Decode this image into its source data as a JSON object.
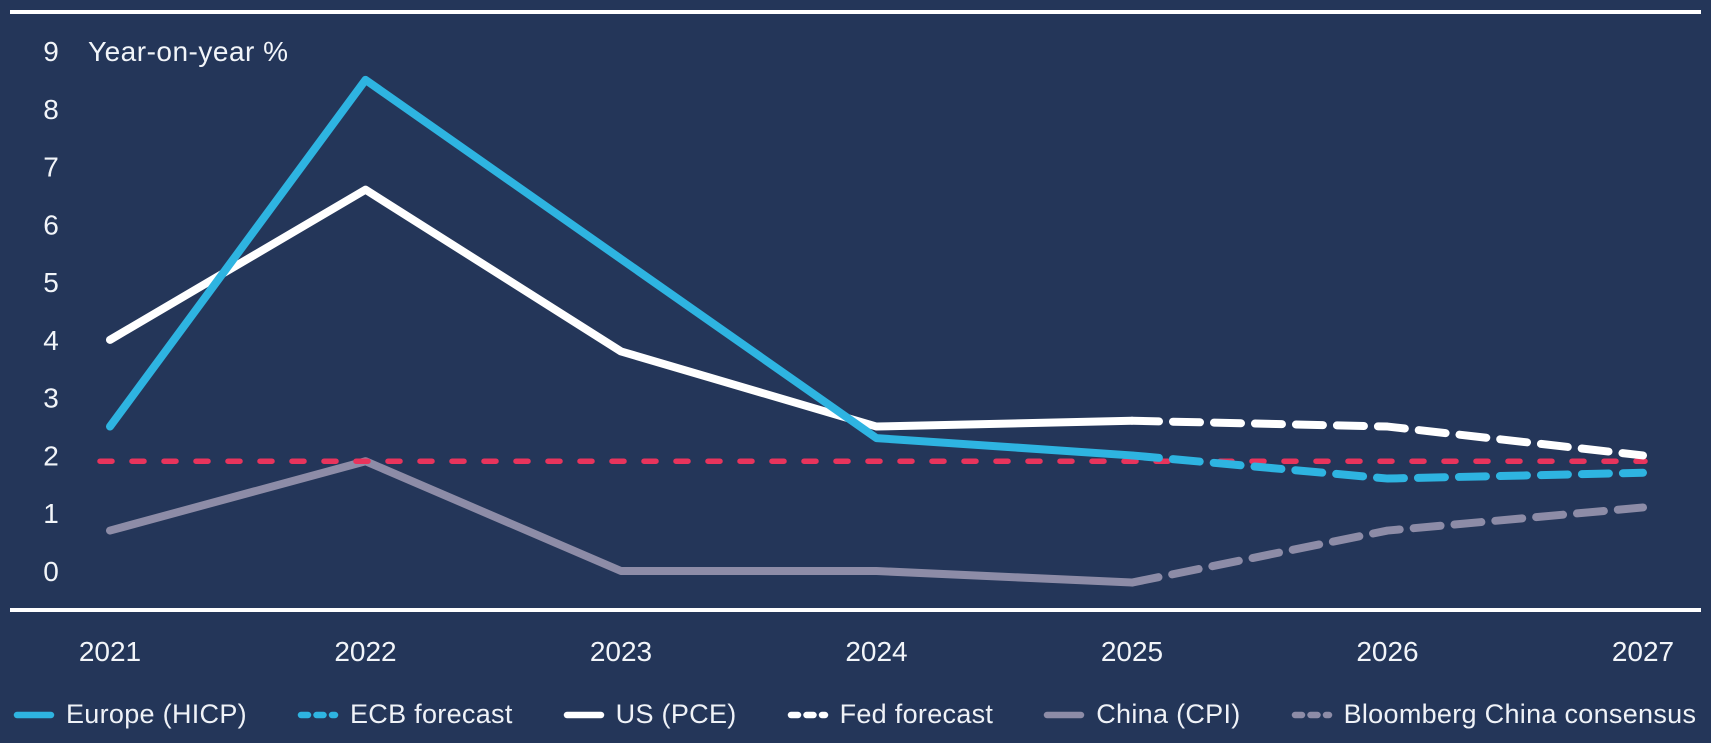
{
  "chart_data": {
    "type": "line",
    "title": "",
    "ylabel": "Year-on-year %",
    "xlabel": "",
    "x_ticks": [
      "2021",
      "2022",
      "2023",
      "2024",
      "2025",
      "2026",
      "2027"
    ],
    "y_ticks": [
      "0",
      "1",
      "2",
      "3",
      "4",
      "5",
      "6",
      "7",
      "8",
      "9"
    ],
    "xlim": [
      2021,
      2027
    ],
    "ylim": [
      -0.7,
      9.7
    ],
    "grid": false,
    "legend_position": "bottom",
    "background_color": "#243659",
    "axis_color": "#FFFFFF",
    "text_color": "#F2F5F9",
    "series": [
      {
        "name": "Europe (HICP)",
        "color": "#2EB4E1",
        "dash": "solid",
        "x": [
          2021,
          2022,
          2023,
          2024,
          2025
        ],
        "values": [
          2.5,
          8.5,
          5.4,
          2.3,
          2.0
        ]
      },
      {
        "name": "ECB forecast",
        "color": "#2EB4E1",
        "dash": "dashed",
        "x": [
          2025,
          2026,
          2027
        ],
        "values": [
          2.0,
          1.6,
          1.7
        ]
      },
      {
        "name": "US (PCE)",
        "color": "#FFFFFF",
        "dash": "solid",
        "x": [
          2021,
          2022,
          2023,
          2024,
          2025
        ],
        "values": [
          4.0,
          6.6,
          3.8,
          2.5,
          2.6
        ]
      },
      {
        "name": "Fed forecast",
        "color": "#FFFFFF",
        "dash": "dashed",
        "x": [
          2025,
          2026,
          2027
        ],
        "values": [
          2.6,
          2.5,
          2.0
        ]
      },
      {
        "name": "China (CPI)",
        "color": "#8D8CA7",
        "dash": "solid",
        "x": [
          2021,
          2022,
          2023,
          2024,
          2025
        ],
        "values": [
          0.7,
          1.9,
          0.0,
          0.0,
          -0.2
        ]
      },
      {
        "name": "Bloomberg China consensus",
        "color": "#8D8CA7",
        "dash": "dashed",
        "x": [
          2025,
          2026,
          2027
        ],
        "values": [
          -0.2,
          0.7,
          1.1
        ]
      }
    ],
    "reference_line": {
      "value": 1.9,
      "color": "#E8345C",
      "dash": "dashed"
    }
  }
}
